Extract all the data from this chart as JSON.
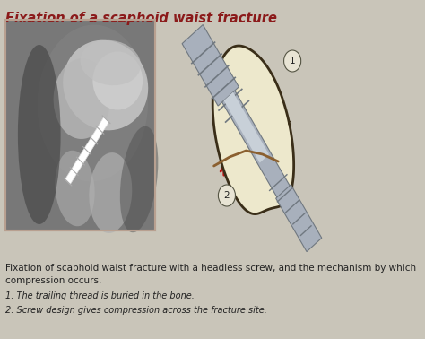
{
  "background_color": "#c9c5b9",
  "title": "Fixation of a scaphoid waist fracture",
  "title_color": "#8b1a1a",
  "title_fontsize": 10.5,
  "caption_main": "Fixation of scaphoid waist fracture with a headless screw, and the mechanism by which\ncompression occurs.",
  "caption_1": "1. The trailing thread is buried in the bone.",
  "caption_2": "2. Screw design gives compression across the fracture site.",
  "caption_fontsize": 7.5,
  "bone_color": "#ede8cc",
  "bone_outline": "#3a2e18",
  "screw_color": "#a8b0bc",
  "screw_dark": "#707880",
  "screw_light": "#c8d0d8",
  "arrow_color": "#bb1111",
  "label_circle_color": "#e8e4d4",
  "fracture_line_color": "#8b6030",
  "xray_border": "#b8a090"
}
